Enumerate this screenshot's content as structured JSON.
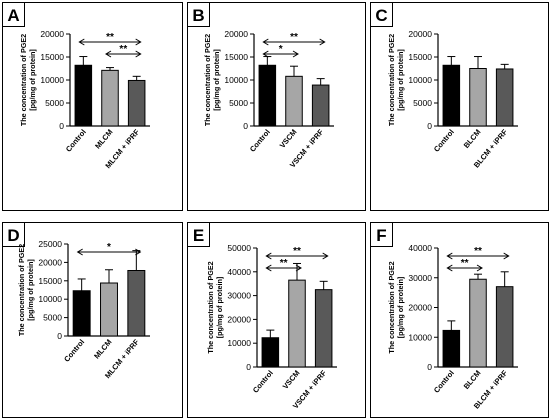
{
  "figure": {
    "ylabel_line1": "The concentration of PGE2",
    "ylabel_line2": "[pg/mg of protein]"
  },
  "colors": {
    "bar_fills": [
      "#000000",
      "#a6a6a6",
      "#595959"
    ],
    "stroke": "#000000",
    "panel_border": "#000000"
  },
  "chart_data": [
    {
      "panel": "A",
      "type": "bar",
      "ylim": [
        0,
        20000
      ],
      "yticks": [
        0,
        5000,
        10000,
        15000,
        20000
      ],
      "categories": [
        "Control",
        "MLCM",
        "MLCM + iPRF"
      ],
      "values": [
        13200,
        12100,
        9900
      ],
      "errors": [
        1900,
        600,
        900
      ],
      "significance": [
        {
          "from": 0,
          "to": 2,
          "label": "**"
        },
        {
          "from": 1,
          "to": 2,
          "label": "**"
        }
      ]
    },
    {
      "panel": "B",
      "type": "bar",
      "ylim": [
        0,
        20000
      ],
      "yticks": [
        0,
        5000,
        10000,
        15000,
        20000
      ],
      "categories": [
        "Control",
        "VSCM",
        "VSCM + iPRF"
      ],
      "values": [
        13200,
        10800,
        8900
      ],
      "errors": [
        1900,
        2200,
        1400
      ],
      "significance": [
        {
          "from": 0,
          "to": 2,
          "label": "**"
        },
        {
          "from": 0,
          "to": 1,
          "label": "*"
        }
      ]
    },
    {
      "panel": "C",
      "type": "bar",
      "ylim": [
        0,
        20000
      ],
      "yticks": [
        0,
        5000,
        10000,
        15000,
        20000
      ],
      "categories": [
        "Control",
        "BLCM",
        "BLCM + iPRF"
      ],
      "values": [
        13200,
        12500,
        12400
      ],
      "errors": [
        1900,
        2600,
        1000
      ],
      "significance": []
    },
    {
      "panel": "D",
      "type": "bar",
      "ylim": [
        0,
        25000
      ],
      "yticks": [
        0,
        5000,
        10000,
        15000,
        20000,
        25000
      ],
      "categories": [
        "Control",
        "MLCM",
        "MLCM + iPRF"
      ],
      "values": [
        12300,
        14400,
        17800
      ],
      "errors": [
        3200,
        3600,
        5400
      ],
      "significance": [
        {
          "from": 0,
          "to": 2,
          "label": "*"
        }
      ]
    },
    {
      "panel": "E",
      "type": "bar",
      "ylim": [
        0,
        50000
      ],
      "yticks": [
        0,
        10000,
        20000,
        30000,
        40000,
        50000
      ],
      "categories": [
        "Control",
        "VSCM",
        "VSCM + iPRF"
      ],
      "values": [
        12300,
        36500,
        32500
      ],
      "errors": [
        3200,
        7000,
        3500
      ],
      "significance": [
        {
          "from": 0,
          "to": 2,
          "label": "**"
        },
        {
          "from": 0,
          "to": 1,
          "label": "**"
        }
      ]
    },
    {
      "panel": "F",
      "type": "bar",
      "ylim": [
        0,
        40000
      ],
      "yticks": [
        0,
        10000,
        20000,
        30000,
        40000
      ],
      "categories": [
        "Control",
        "BLCM",
        "BLCM + iPRF"
      ],
      "values": [
        12300,
        29500,
        27000
      ],
      "errors": [
        3200,
        1700,
        5000
      ],
      "significance": [
        {
          "from": 0,
          "to": 2,
          "label": "**"
        },
        {
          "from": 0,
          "to": 1,
          "label": "**"
        }
      ]
    }
  ]
}
